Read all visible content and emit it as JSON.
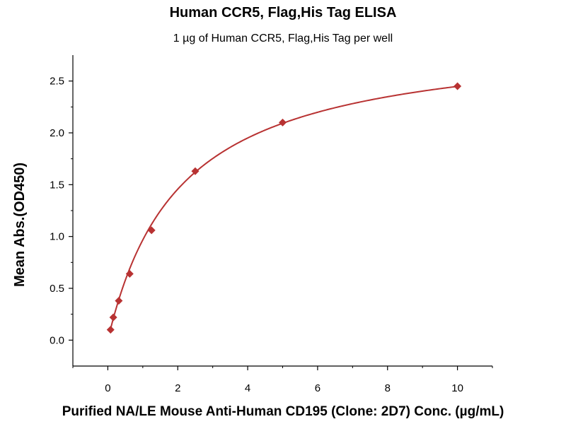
{
  "chart_data": {
    "type": "scatter",
    "title": "Human CCR5, Flag,His Tag ELISA",
    "subtitle": "1 µg of Human CCR5, Flag,His Tag per well",
    "xlabel": "Purified NA/LE Mouse Anti-Human CD195 (Clone: 2D7) Conc. (µg/mL)",
    "ylabel": "Mean Abs.(OD450)",
    "xlim": [
      -1,
      11
    ],
    "ylim": [
      -0.25,
      2.75
    ],
    "x_ticks": [
      0,
      2,
      4,
      6,
      8,
      10
    ],
    "y_ticks": [
      0.0,
      0.5,
      1.0,
      1.5,
      2.0,
      2.5
    ],
    "x_tick_labels": [
      "0",
      "2",
      "4",
      "6",
      "8",
      "10"
    ],
    "y_tick_labels": [
      "0.0",
      "0.5",
      "1.0",
      "1.5",
      "2.0",
      "2.5"
    ],
    "grid": false,
    "legend": "none",
    "series": [
      {
        "name": "Mean Abs.(OD450)",
        "marker": "diamond",
        "color": "#b83232",
        "x": [
          0.078,
          0.156,
          0.313,
          0.625,
          1.25,
          2.5,
          5,
          10
        ],
        "y": [
          0.1,
          0.22,
          0.38,
          0.64,
          1.06,
          1.63,
          2.1,
          2.45
        ]
      }
    ],
    "fit_curve": {
      "color": "#b83232",
      "model": "four-parameter logistic",
      "bottom": 0.0,
      "top": 2.95,
      "ec50": 2.05,
      "hill": 1.0
    }
  }
}
